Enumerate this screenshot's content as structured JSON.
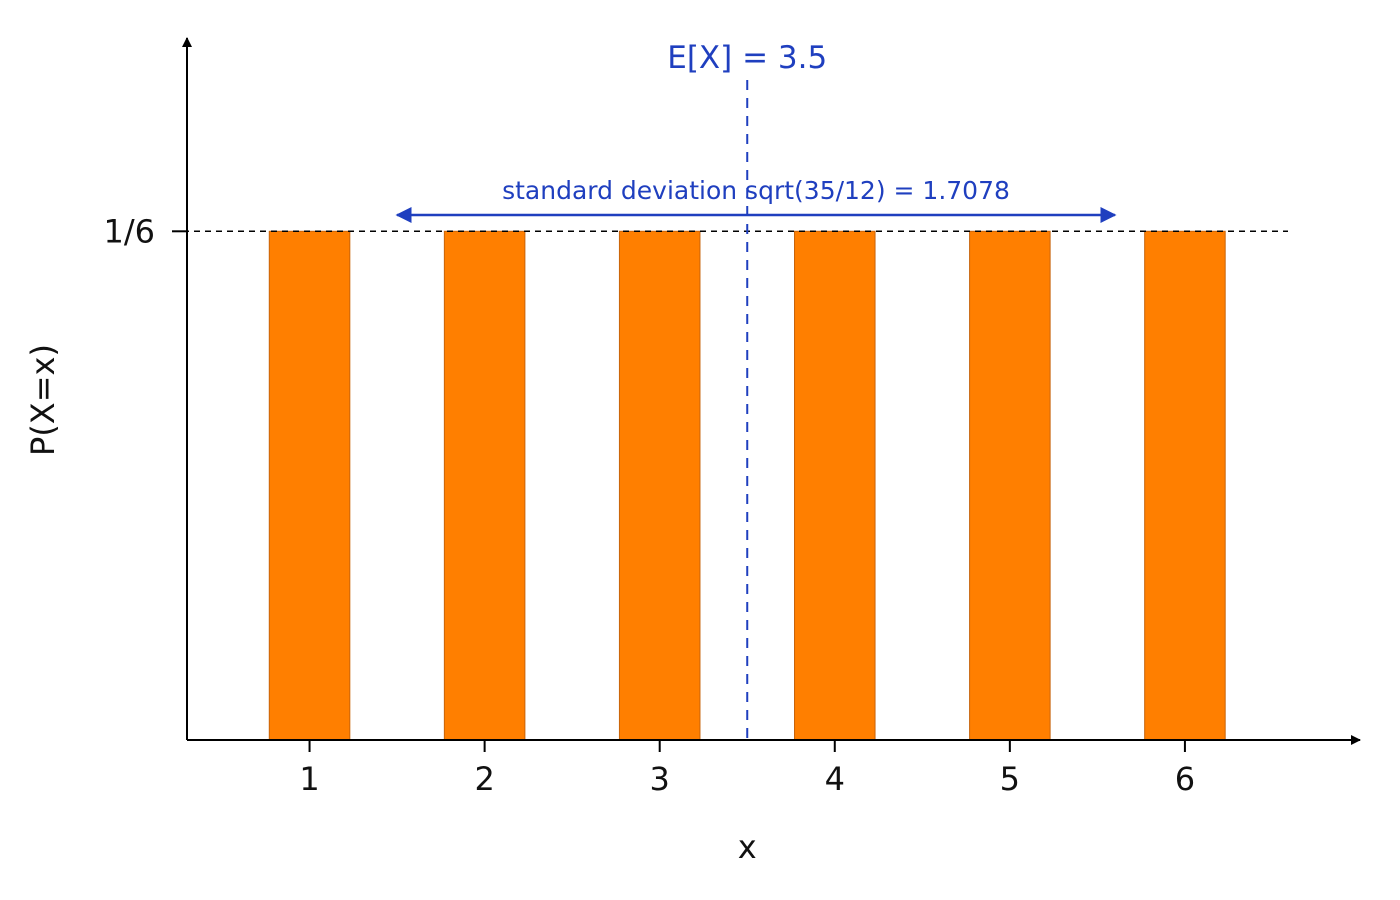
{
  "chart_data": {
    "type": "bar",
    "categories": [
      "1",
      "2",
      "3",
      "4",
      "5",
      "6"
    ],
    "x": [
      1,
      2,
      3,
      4,
      5,
      6
    ],
    "values": [
      0.16667,
      0.16667,
      0.16667,
      0.16667,
      0.16667,
      0.16667
    ],
    "title": "",
    "xlabel": "x",
    "ylabel": "P(X=x)",
    "y_tick_value": 0.16667,
    "y_tick_label": "1/6",
    "xlim": [
      0.3,
      7.0
    ],
    "ylim": [
      0,
      0.23
    ],
    "grid": false,
    "legend": "none",
    "bar_color": "#ff7f00",
    "bar_edge_color": "#c8640a",
    "annotation_color": "#1f3fbf",
    "axis_color": "#000000",
    "annotations": {
      "mean": {
        "value": 3.5,
        "label": "E[X] = 3.5"
      },
      "std": {
        "value": 1.7078,
        "from": 1.5,
        "to": 5.6,
        "label": "standard deviation sqrt(35/12) = 1.7078"
      }
    }
  }
}
